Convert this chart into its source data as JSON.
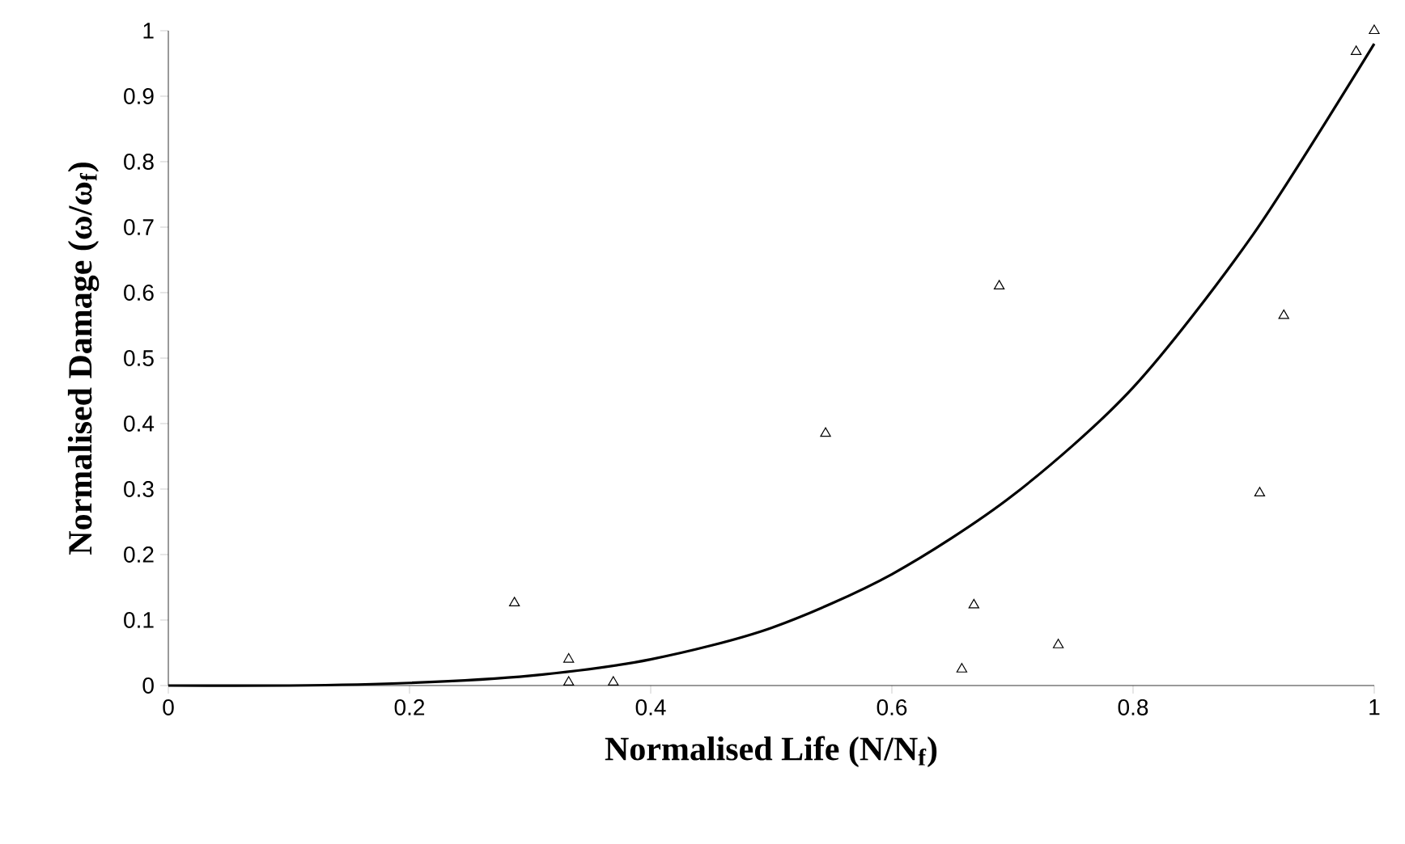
{
  "chart_data": {
    "type": "scatter",
    "xlabel": "Normalised Life (N/N$_{f}$)",
    "ylabel": "Normalised Damage (ω/ω$_{f}$)",
    "xlim": [
      0,
      1
    ],
    "ylim": [
      0,
      1
    ],
    "xticks": [
      0,
      0.2,
      0.4,
      0.6,
      0.8,
      1
    ],
    "yticks": [
      0,
      0.1,
      0.2,
      0.3,
      0.4,
      0.5,
      0.6,
      0.7,
      0.8,
      0.9,
      1
    ],
    "grid": false,
    "series": [
      {
        "marker": "triangle",
        "color": "#000000",
        "x": [
          0.287,
          0.332,
          0.332,
          0.369,
          0.545,
          0.658,
          0.668,
          0.689,
          0.738,
          0.905,
          0.925,
          0.985,
          1.0
        ],
        "values": [
          0.126,
          0.04,
          0.005,
          0.005,
          0.385,
          0.025,
          0.123,
          0.61,
          0.062,
          0.294,
          0.565,
          0.968,
          1.0
        ]
      },
      {
        "type": "line",
        "marker": "none",
        "line_style": "solid",
        "color": "#000000",
        "x": [
          0,
          0.1,
          0.2,
          0.3,
          0.4,
          0.5,
          0.6,
          0.7,
          0.8,
          0.9,
          1.0
        ],
        "values": [
          0,
          0,
          0.004,
          0.015,
          0.04,
          0.088,
          0.17,
          0.29,
          0.455,
          0.69,
          0.98
        ]
      }
    ]
  }
}
